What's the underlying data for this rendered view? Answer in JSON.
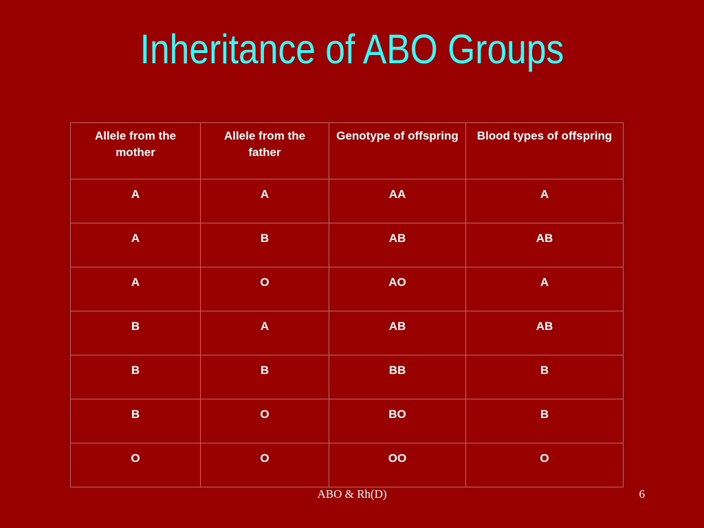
{
  "slide": {
    "title": "Inheritance of ABO Groups",
    "footer": "ABO & Rh(D)",
    "page_number": "6"
  },
  "table": {
    "headers": [
      "Allele from the mother",
      "Allele from the father",
      "Genotype of offspring",
      "Blood types of offspring"
    ],
    "rows": [
      [
        "A",
        "A",
        "AA",
        "A"
      ],
      [
        "A",
        "B",
        "AB",
        "AB"
      ],
      [
        "A",
        "O",
        "AO",
        "A"
      ],
      [
        "B",
        "A",
        "AB",
        "AB"
      ],
      [
        "B",
        "B",
        "BB",
        "B"
      ],
      [
        "B",
        "O",
        "BO",
        "B"
      ],
      [
        "O",
        "O",
        "OO",
        "O"
      ]
    ]
  },
  "colors": {
    "background": "#990000",
    "title": "#33ffff",
    "text": "#ffffff"
  }
}
